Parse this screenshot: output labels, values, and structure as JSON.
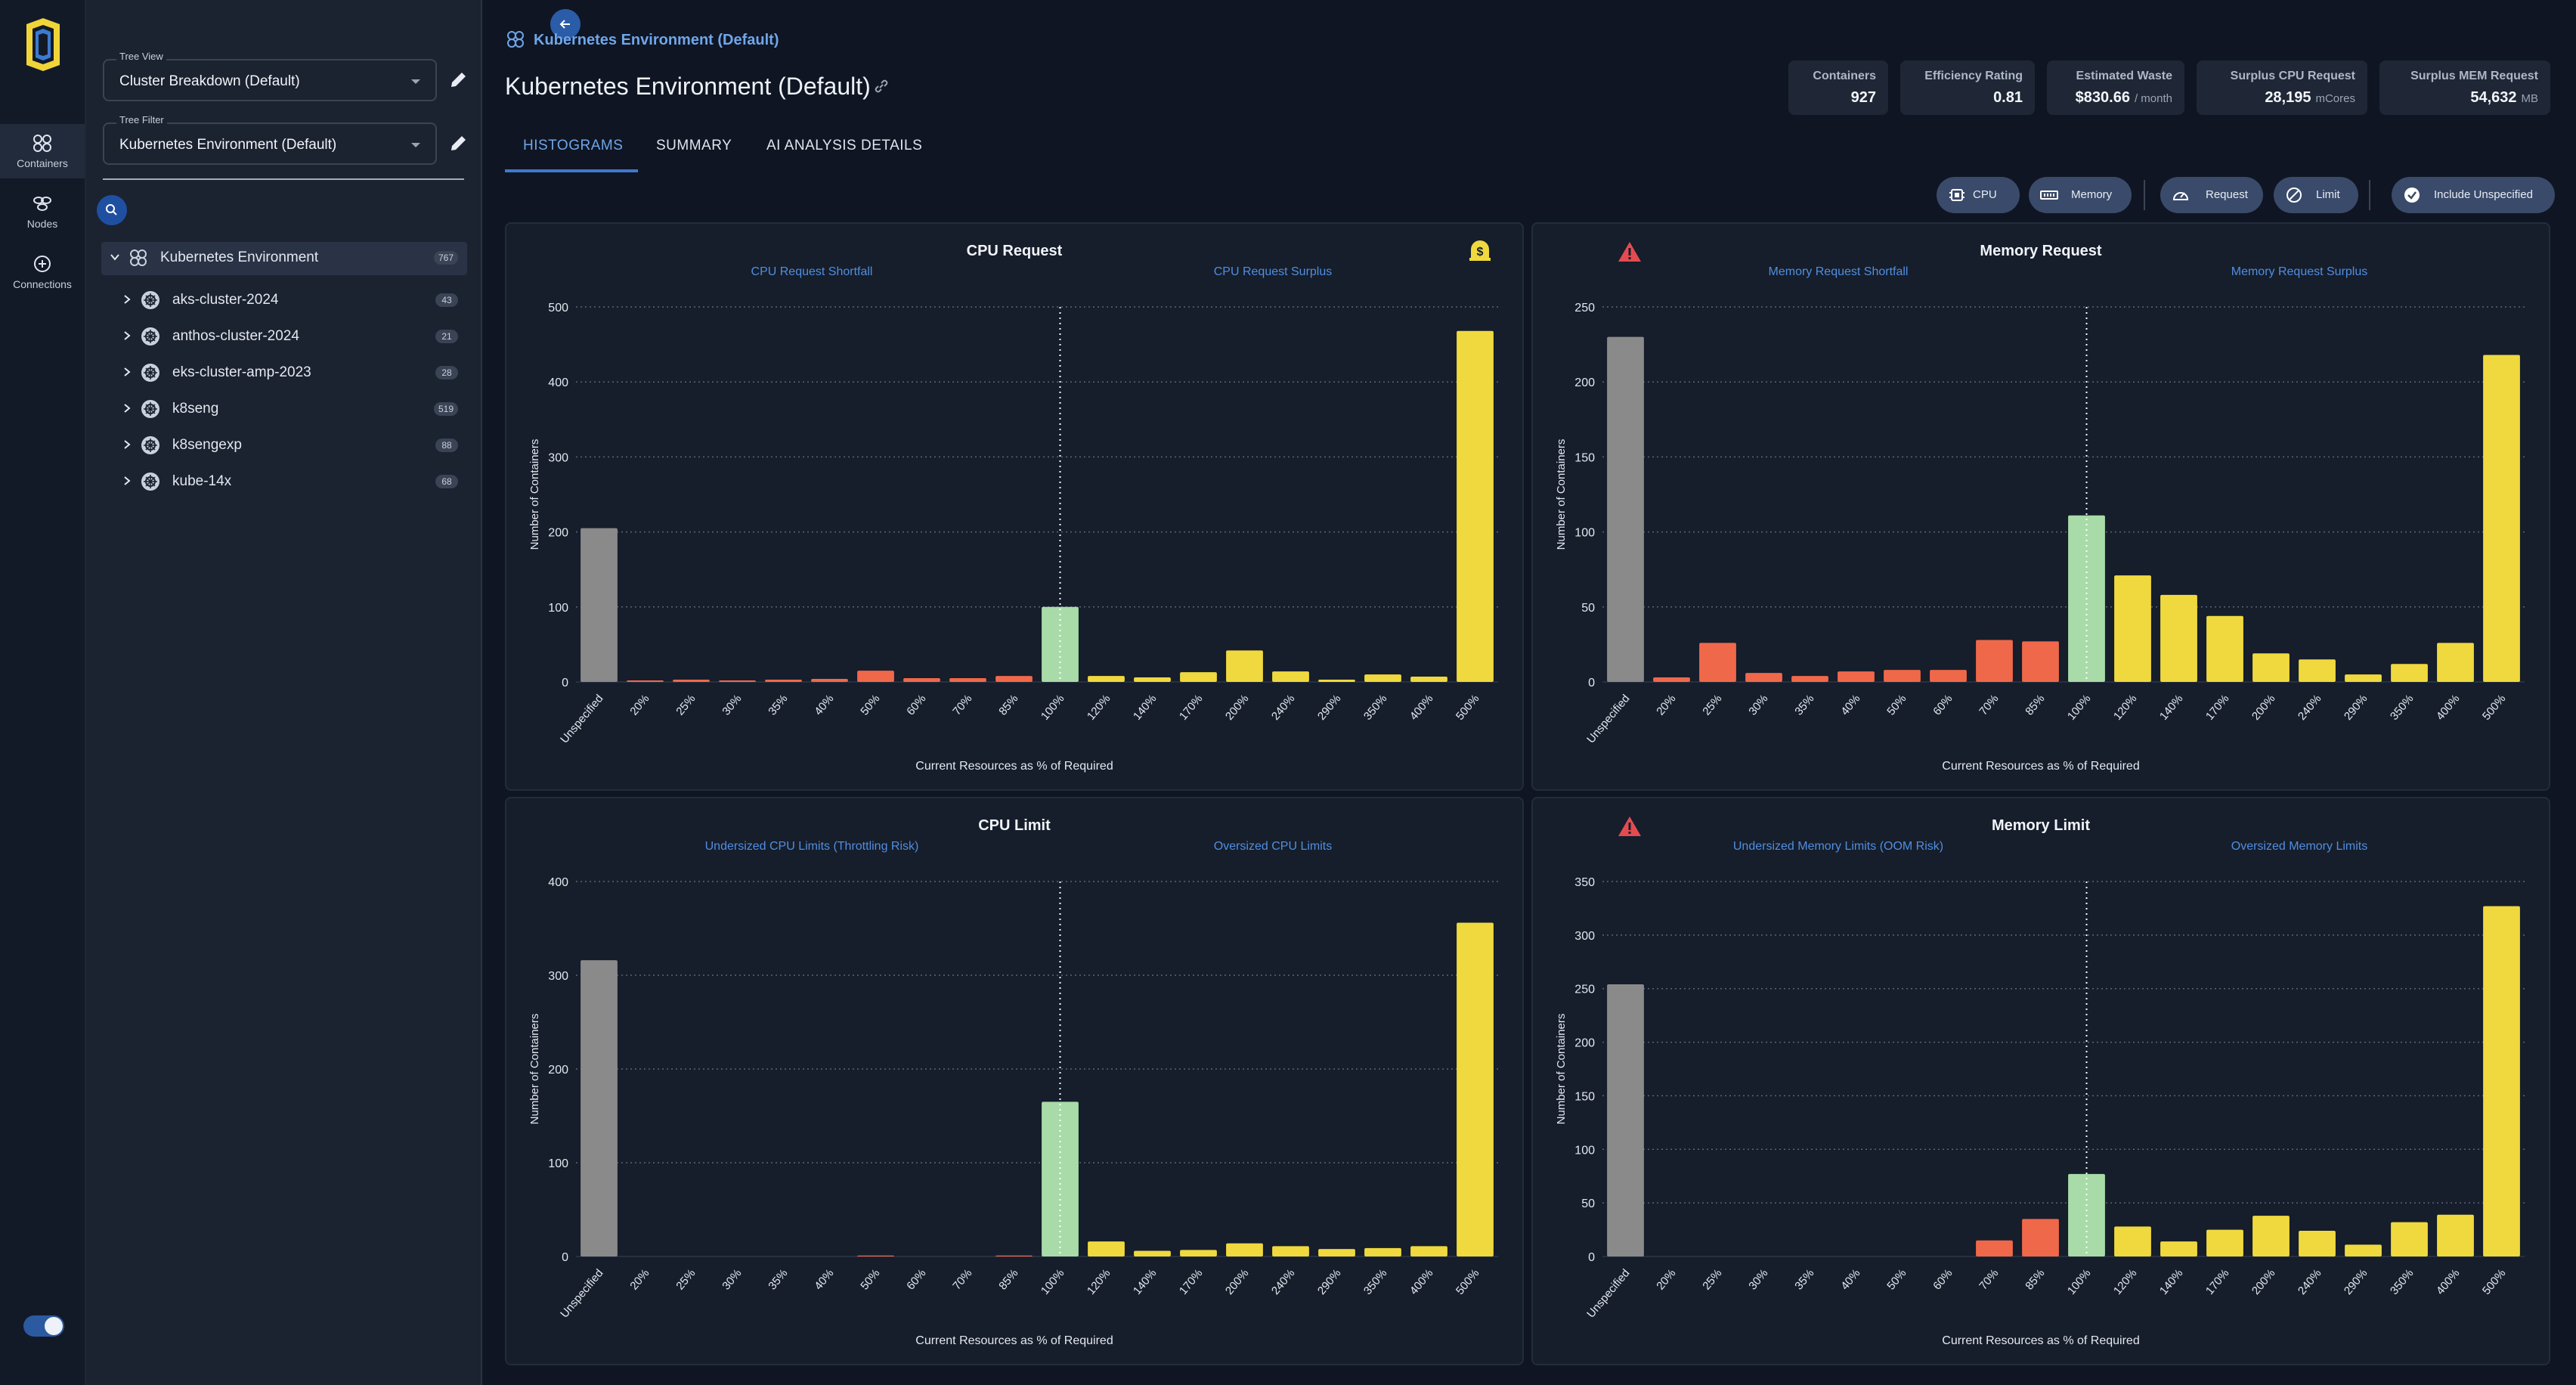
{
  "rail": {
    "items": [
      {
        "label": "Containers",
        "icon": "containers-icon"
      },
      {
        "label": "Nodes",
        "icon": "nodes-icon"
      },
      {
        "label": "Connections",
        "icon": "connections-icon"
      }
    ]
  },
  "tree_panel": {
    "tree_view": {
      "label": "Tree View",
      "value": "Cluster Breakdown (Default)"
    },
    "tree_filter": {
      "label": "Tree Filter",
      "value": "Kubernetes Environment (Default)"
    },
    "root": {
      "label": "Kubernetes Environment",
      "count": "767"
    },
    "clusters": [
      {
        "label": "aks-cluster-2024",
        "count": "43"
      },
      {
        "label": "anthos-cluster-2024",
        "count": "21"
      },
      {
        "label": "eks-cluster-amp-2023",
        "count": "28"
      },
      {
        "label": "k8seng",
        "count": "519"
      },
      {
        "label": "k8sengexp",
        "count": "88"
      },
      {
        "label": "kube-14x",
        "count": "68"
      }
    ]
  },
  "header": {
    "breadcrumb": "Kubernetes Environment (Default)",
    "title": "Kubernetes Environment (Default)"
  },
  "tabs": [
    {
      "label": "HISTOGRAMS",
      "active": true
    },
    {
      "label": "SUMMARY",
      "active": false
    },
    {
      "label": "AI ANALYSIS DETAILS",
      "active": false
    }
  ],
  "stats": [
    {
      "label": "Containers",
      "value": "927",
      "unit": ""
    },
    {
      "label": "Efficiency Rating",
      "value": "0.81",
      "unit": ""
    },
    {
      "label": "Estimated Waste",
      "value": "$830.66",
      "unit": "/ month"
    },
    {
      "label": "Surplus CPU Request",
      "value": "28,195",
      "unit": "mCores"
    },
    {
      "label": "Surplus MEM Request",
      "value": "54,632",
      "unit": "MB"
    }
  ],
  "filters": {
    "cpu": "CPU",
    "memory": "Memory",
    "request": "Request",
    "limit": "Limit",
    "include_unspecified": "Include Unspecified"
  },
  "colors": {
    "unspecified": "#8a8a8a",
    "shortfall": "#f0684a",
    "optimal": "#a8dba8",
    "surplus": "#efd93e",
    "accent": "#6fa6ea",
    "warning": "#e34b50"
  },
  "chart_data": [
    {
      "type": "bar",
      "title": "CPU Request",
      "left_label": "CPU Request Shortfall",
      "right_label": "CPU Request Surplus",
      "icon": "dollar-bell-icon",
      "xlabel": "Current Resources as % of Required",
      "ylabel": "Number of Containers",
      "categories": [
        "Unspecified",
        "20%",
        "25%",
        "30%",
        "35%",
        "40%",
        "50%",
        "60%",
        "70%",
        "85%",
        "100%",
        "120%",
        "140%",
        "170%",
        "200%",
        "240%",
        "290%",
        "350%",
        "400%",
        "500%"
      ],
      "values": [
        205,
        2,
        3,
        2,
        3,
        4,
        15,
        5,
        5,
        8,
        100,
        8,
        6,
        13,
        42,
        14,
        3,
        10,
        7,
        468
      ],
      "yticks": [
        0,
        100,
        200,
        300,
        400,
        500
      ],
      "ylim": [
        0,
        500
      ]
    },
    {
      "type": "bar",
      "title": "Memory Request",
      "left_label": "Memory Request Shortfall",
      "right_label": "Memory Request Surplus",
      "icon": "warning-icon",
      "xlabel": "Current Resources as % of Required",
      "ylabel": "Number of Containers",
      "categories": [
        "Unspecified",
        "20%",
        "25%",
        "30%",
        "35%",
        "40%",
        "50%",
        "60%",
        "70%",
        "85%",
        "100%",
        "120%",
        "140%",
        "170%",
        "200%",
        "240%",
        "290%",
        "350%",
        "400%",
        "500%"
      ],
      "values": [
        230,
        3,
        26,
        6,
        4,
        7,
        8,
        8,
        28,
        27,
        111,
        71,
        58,
        44,
        19,
        15,
        5,
        12,
        26,
        218
      ],
      "yticks": [
        0,
        50,
        100,
        150,
        200,
        250
      ],
      "ylim": [
        0,
        250
      ]
    },
    {
      "type": "bar",
      "title": "CPU Limit",
      "left_label": "Undersized CPU Limits (Throttling Risk)",
      "right_label": "Oversized CPU Limits",
      "icon": "",
      "xlabel": "Current Resources as % of Required",
      "ylabel": "Number of Containers",
      "categories": [
        "Unspecified",
        "20%",
        "25%",
        "30%",
        "35%",
        "40%",
        "50%",
        "60%",
        "70%",
        "85%",
        "100%",
        "120%",
        "140%",
        "170%",
        "200%",
        "240%",
        "290%",
        "350%",
        "400%",
        "500%"
      ],
      "values": [
        316,
        0,
        0,
        0,
        0,
        0,
        1,
        0,
        0,
        1,
        165,
        16,
        6,
        7,
        14,
        11,
        8,
        9,
        11,
        356
      ],
      "yticks": [
        0,
        100,
        200,
        300,
        400
      ],
      "ylim": [
        0,
        400
      ]
    },
    {
      "type": "bar",
      "title": "Memory Limit",
      "left_label": "Undersized Memory Limits (OOM Risk)",
      "right_label": "Oversized Memory Limits",
      "icon": "warning-icon",
      "xlabel": "Current Resources as % of Required",
      "ylabel": "Number of Containers",
      "categories": [
        "Unspecified",
        "20%",
        "25%",
        "30%",
        "35%",
        "40%",
        "50%",
        "60%",
        "70%",
        "85%",
        "100%",
        "120%",
        "140%",
        "170%",
        "200%",
        "240%",
        "290%",
        "350%",
        "400%",
        "500%"
      ],
      "values": [
        254,
        0,
        0,
        0,
        0,
        0,
        0,
        0,
        15,
        35,
        77,
        28,
        14,
        25,
        38,
        24,
        11,
        32,
        39,
        327
      ],
      "yticks": [
        0,
        50,
        100,
        150,
        200,
        250,
        300,
        350
      ],
      "ylim": [
        0,
        350
      ]
    }
  ]
}
